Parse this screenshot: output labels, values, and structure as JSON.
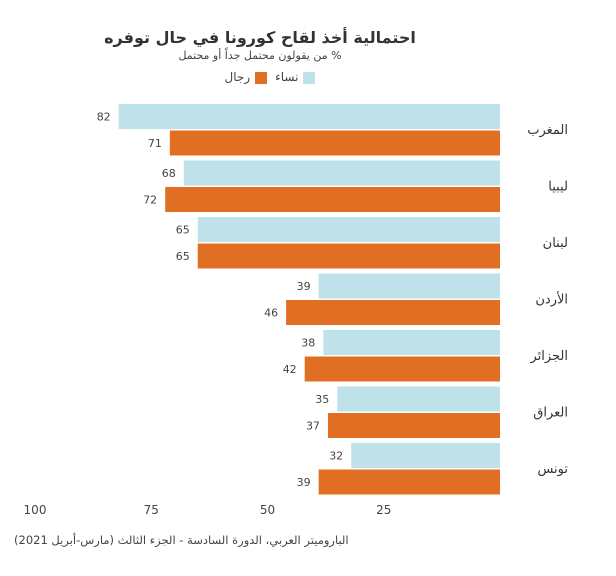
{
  "chart_data": {
    "type": "bar",
    "orientation": "horizontal",
    "title": "احتمالية أخذ لقاح كورونا في حال توفره",
    "subtitle": "% من يقولون محتمل جداً أو محتمل",
    "categories": [
      "المغرب",
      "ليبيا",
      "لبنان",
      "الأردن",
      "الجزائر",
      "العراق",
      "تونس"
    ],
    "series": [
      {
        "name": "نساء",
        "color": "#bfe2ea",
        "values": [
          82,
          68,
          65,
          39,
          38,
          35,
          32
        ]
      },
      {
        "name": "رجال",
        "color": "#e06f23",
        "values": [
          71,
          72,
          65,
          46,
          42,
          37,
          39
        ]
      }
    ],
    "xlim": [
      0,
      100
    ],
    "xticks": [
      100,
      75,
      50,
      25
    ],
    "x_reversed": true,
    "grid": false,
    "legend": "top",
    "source": "الباروميتر العربي، الدورة السادسة - الجزء الثالث (مارس-أبريل 2021)"
  }
}
